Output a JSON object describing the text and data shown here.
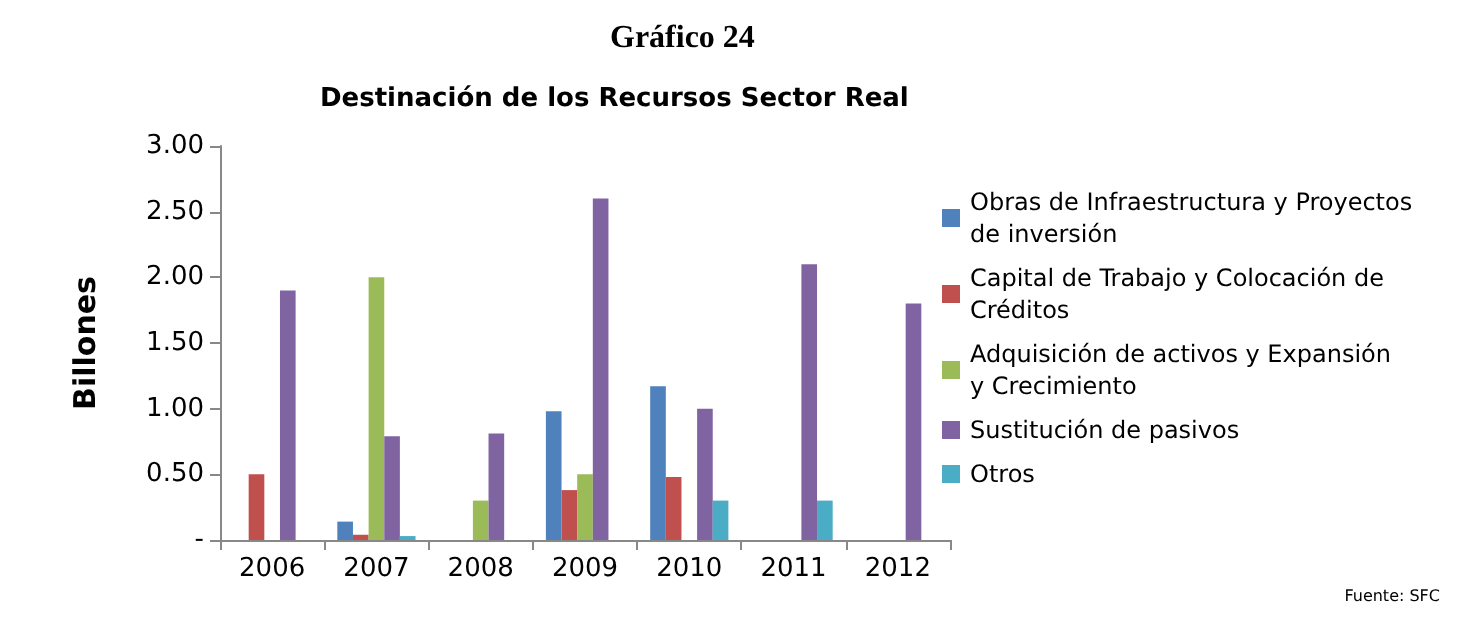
{
  "chart_data": {
    "type": "bar",
    "title": "Gráfico 24",
    "subtitle": "Destinación de los Recursos Sector Real",
    "ylabel": "Billones",
    "categories": [
      "2006",
      "2007",
      "2008",
      "2009",
      "2010",
      "2011",
      "2012"
    ],
    "series": [
      {
        "name": "Obras de Infraestructura y Proyectos de inversión",
        "color": "#4f81bd",
        "values": [
          null,
          0.14,
          null,
          0.98,
          1.17,
          null,
          null
        ]
      },
      {
        "name": "Capital de Trabajo y Colocación de Créditos",
        "color": "#c0504d",
        "values": [
          0.5,
          0.04,
          null,
          0.38,
          0.48,
          null,
          null
        ]
      },
      {
        "name": "Adquisición de activos y Expansión y Crecimiento",
        "color": "#9bbb59",
        "values": [
          null,
          2.0,
          0.3,
          0.5,
          null,
          null,
          null
        ]
      },
      {
        "name": "Sustitución de pasivos",
        "color": "#8064a2",
        "values": [
          1.9,
          0.79,
          0.81,
          2.6,
          1.0,
          2.1,
          1.8
        ]
      },
      {
        "name": "Otros",
        "color": "#4bacc6",
        "values": [
          null,
          0.03,
          null,
          null,
          0.3,
          0.3,
          null
        ]
      }
    ],
    "ylim": [
      0,
      3
    ],
    "yticks": [
      {
        "value": 0,
        "label": "-"
      },
      {
        "value": 0.5,
        "label": "0.50"
      },
      {
        "value": 1,
        "label": "1.00"
      },
      {
        "value": 1.5,
        "label": "1.50"
      },
      {
        "value": 2,
        "label": "2.00"
      },
      {
        "value": 2.5,
        "label": "2.50"
      },
      {
        "value": 3,
        "label": "3.00"
      }
    ],
    "legend": "right",
    "grid": false,
    "annotations": [
      "Fuente: SFC"
    ]
  }
}
